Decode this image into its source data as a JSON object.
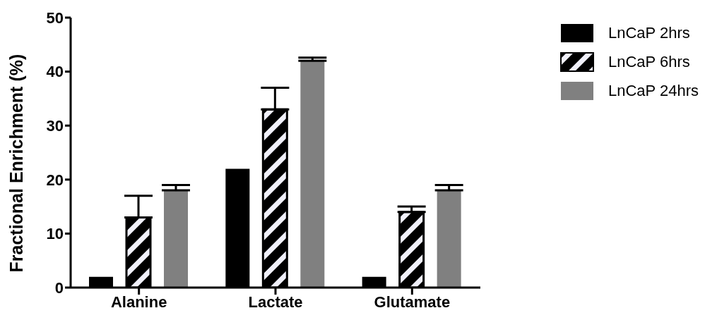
{
  "chart_data": {
    "type": "bar",
    "ylabel": "Fractional Enrichment (%)",
    "categories": [
      "Alanine",
      "Lactate",
      "Glutamate"
    ],
    "series": [
      {
        "name": "LnCaP 2hrs",
        "color": "#000000",
        "values": [
          2,
          22,
          2
        ],
        "errors": [
          null,
          null,
          null
        ]
      },
      {
        "name": "LnCaP 6hrs",
        "color": "#000000",
        "values": [
          13,
          33,
          14
        ],
        "errors": [
          [
            13,
            17
          ],
          [
            33,
            37
          ],
          [
            14,
            15
          ]
        ]
      },
      {
        "name": "LnCaP 24hrs",
        "color": "#808080",
        "values": [
          18,
          42,
          18
        ],
        "errors": [
          [
            18,
            19
          ],
          [
            42,
            42.6
          ],
          [
            18,
            19
          ]
        ]
      }
    ],
    "ylim": [
      0,
      50
    ],
    "yticks": [
      0,
      10,
      20,
      30,
      40,
      50
    ],
    "legend": "right"
  }
}
